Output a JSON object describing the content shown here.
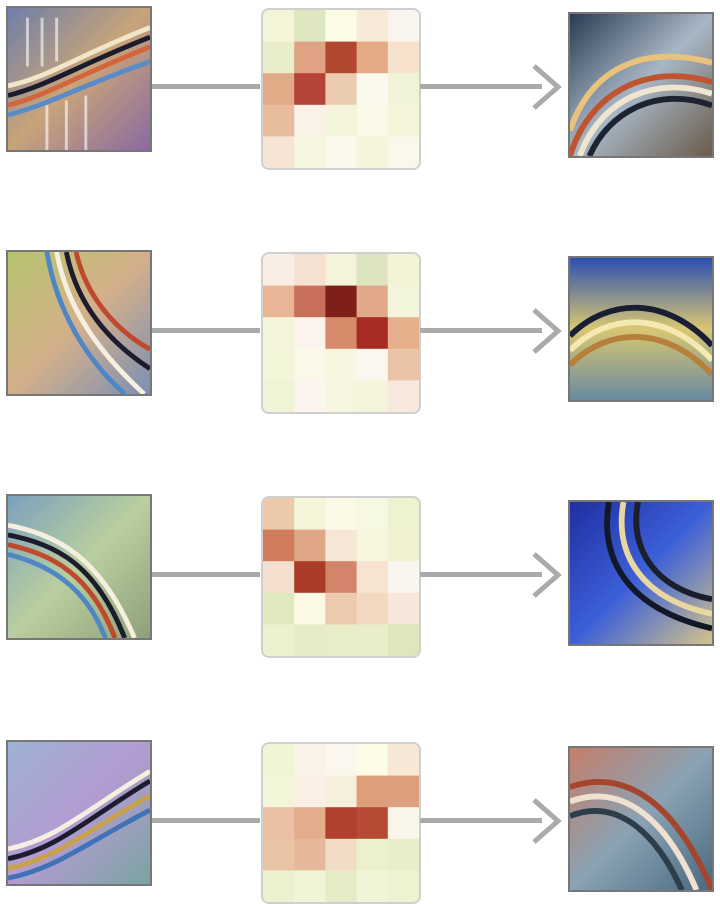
{
  "colors": {
    "connector": "#aaaaaa",
    "thumb_border": "#777777",
    "matrix_border": "#cfcfcf"
  },
  "rows": [
    {
      "input_icon": "filter-visualization-icon",
      "output_icon": "filter-visualization-icon",
      "matrix": [
        [
          "#f4f5d8",
          "#dfe7c1",
          "#fbfbe6",
          "#f7ead8",
          "#faf4ee"
        ],
        [
          "#e9edc9",
          "#dfa384",
          "#b3462f",
          "#e4aa86",
          "#f6e2cd"
        ],
        [
          "#e0ab87",
          "#b64436",
          "#ecccae",
          "#fbf8ee",
          "#f1f3d9"
        ],
        [
          "#e8bd9c",
          "#faf1e9",
          "#f4f5dc",
          "#fbf9e7",
          "#f5f5dc"
        ],
        [
          "#f6e4d4",
          "#f6f6e0",
          "#fbf8ee",
          "#f4f5dc",
          "#fbf7ea"
        ]
      ]
    },
    {
      "input_icon": "filter-visualization-icon",
      "output_icon": "filter-visualization-icon",
      "matrix": [
        [
          "#faeee4",
          "#f5e1d1",
          "#f4f4da",
          "#dce5bf",
          "#f3f4d6"
        ],
        [
          "#e8b597",
          "#c8705a",
          "#7e1f18",
          "#e1a988",
          "#f4f5dd"
        ],
        [
          "#f4f5da",
          "#fbf3ec",
          "#d88b6a",
          "#a62c24",
          "#e6b08d"
        ],
        [
          "#f3f5d9",
          "#fbf8ea",
          "#f6f6e1",
          "#fcf6f0",
          "#ebc3a6"
        ],
        [
          "#f1f3d6",
          "#fbf5ee",
          "#f6f6e0",
          "#f5f5dc",
          "#f7e9dd"
        ]
      ]
    },
    {
      "input_icon": "filter-visualization-icon",
      "output_icon": "filter-visualization-icon",
      "matrix": [
        [
          "#ecc9a9",
          "#f5f5da",
          "#fafae6",
          "#f7f8e1",
          "#eff2d0"
        ],
        [
          "#cf7b5c",
          "#e0a787",
          "#f5e6d5",
          "#f6f5de",
          "#f0f2d2"
        ],
        [
          "#f5dfce",
          "#aa3b28",
          "#d3846a",
          "#f6e3d2",
          "#faf5ee"
        ],
        [
          "#e0e8c0",
          "#fbf9e4",
          "#eccaad",
          "#f2d9c0",
          "#f6e7da"
        ],
        [
          "#eef1cd",
          "#e7ecc6",
          "#e8edc8",
          "#e9edc8",
          "#dfe5bd"
        ]
      ]
    },
    {
      "input_icon": "filter-visualization-icon",
      "output_icon": "filter-visualization-icon",
      "matrix": [
        [
          "#f2f4d6",
          "#faf3ea",
          "#fbf6ee",
          "#fbfbe6",
          "#f6e7d6"
        ],
        [
          "#f3f5d8",
          "#faf0e6",
          "#f5efdb",
          "#dd9e7c",
          "#dda07f"
        ],
        [
          "#eac2a3",
          "#e3ad8c",
          "#b1402f",
          "#b64a35",
          "#fbf6ea"
        ],
        [
          "#eac3a4",
          "#e6b89a",
          "#f1ddc6",
          "#edf0cd",
          "#eaeec8"
        ],
        [
          "#eef1d0",
          "#f1f4d5",
          "#e5ebc4",
          "#f2f4d8",
          "#eff2d1"
        ]
      ]
    }
  ]
}
